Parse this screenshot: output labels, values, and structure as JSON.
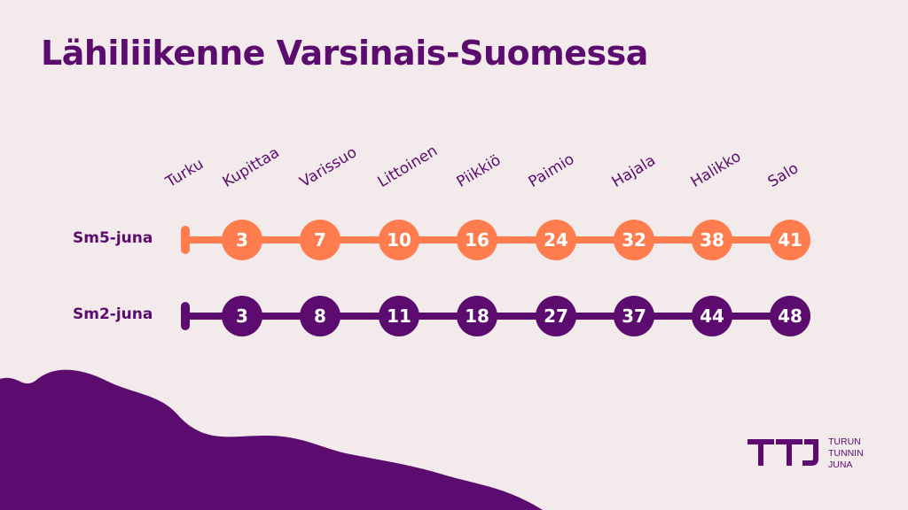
{
  "title": "Lähiliikenne Varsinais-Suomessa",
  "stations": [
    "Turku",
    "Kupittaa",
    "Varissuo",
    "Littoinen",
    "Piikkiö",
    "Paimio",
    "Hajala",
    "Halikko",
    "Salo"
  ],
  "routes": [
    {
      "label": "Sm5-juna",
      "color": "#ff7c4e",
      "times": [
        "3",
        "7",
        "10",
        "16",
        "24",
        "32",
        "38",
        "41"
      ]
    },
    {
      "label": "Sm2-juna",
      "color": "#5c0b6f",
      "times": [
        "3",
        "8",
        "11",
        "18",
        "27",
        "37",
        "44",
        "48"
      ]
    }
  ],
  "logo": {
    "line1": "TURUN",
    "line2": "TUNNIN",
    "line3": "JUNA"
  },
  "colors": {
    "background": "#f3ebeb",
    "purple": "#5c0b6f",
    "orange": "#ff7c4e"
  }
}
